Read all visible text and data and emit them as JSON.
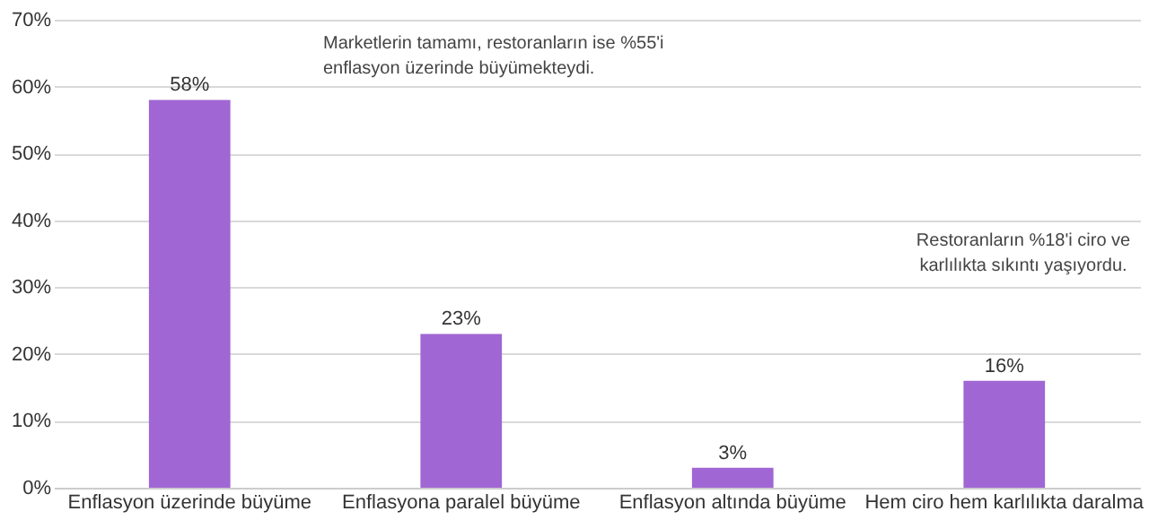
{
  "chart_data": {
    "type": "bar",
    "categories": [
      "Enflasyon üzerinde büyüme",
      "Enflasyona paralel büyüme",
      "Enflasyon altında büyüme",
      "Hem ciro hem karlılıkta daralma"
    ],
    "values": [
      58,
      23,
      3,
      16
    ],
    "color": "#a066d3",
    "value_labels": [
      "58%",
      "23%",
      "3%",
      "16%"
    ],
    "ylim": [
      0,
      70
    ],
    "yticks": [
      {
        "value": 0,
        "label": "0%"
      },
      {
        "value": 10,
        "label": "10%"
      },
      {
        "value": 20,
        "label": "20%"
      },
      {
        "value": 30,
        "label": "30%"
      },
      {
        "value": 40,
        "label": "40%"
      },
      {
        "value": 50,
        "label": "50%"
      },
      {
        "value": 60,
        "label": "60%"
      },
      {
        "value": 70,
        "label": "70%"
      }
    ],
    "grid": "y",
    "annotations": [
      "Marketlerin  tamamı, restoranların ise %55'i enflasyon üzerinde büyümekteydi.",
      "Restoranların %18'i ciro ve karlılıkta sıkıntı yaşıyordu."
    ]
  }
}
